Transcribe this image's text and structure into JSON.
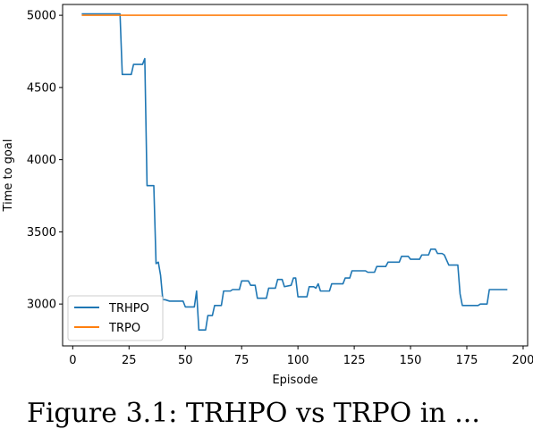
{
  "chart_data": {
    "type": "line",
    "title": "",
    "xlabel": "Episode",
    "ylabel": "Time to goal",
    "xlim": [
      -4.5,
      202
    ],
    "ylim": [
      2710,
      5075
    ],
    "xticks": [
      0,
      25,
      50,
      75,
      100,
      125,
      150,
      175,
      200
    ],
    "yticks": [
      3000,
      3500,
      4000,
      4500,
      5000
    ],
    "grid": false,
    "legend_position": "lower-left",
    "series": [
      {
        "name": "TRHPO",
        "color": "#1f77b4",
        "x": [
          4,
          21,
          22,
          23,
          26,
          27,
          31,
          32,
          33,
          36,
          37,
          38,
          39,
          40,
          41,
          43,
          44,
          49,
          50,
          54,
          55,
          56,
          58,
          59,
          60,
          62,
          63,
          66,
          67,
          70,
          71,
          74,
          75,
          78,
          79,
          81,
          82,
          86,
          87,
          90,
          91,
          93,
          94,
          97,
          98,
          99,
          100,
          101,
          104,
          105,
          107,
          108,
          109,
          110,
          114,
          115,
          120,
          121,
          123,
          124,
          130,
          131,
          134,
          135,
          139,
          140,
          145,
          146,
          149,
          150,
          154,
          155,
          158,
          159,
          161,
          162,
          164,
          165,
          167,
          168,
          171,
          172,
          173,
          174,
          175,
          180,
          181,
          184,
          185,
          193
        ],
        "y": [
          5010,
          5010,
          4590,
          4590,
          4590,
          4660,
          4660,
          4700,
          3820,
          3820,
          3280,
          3290,
          3200,
          3030,
          3030,
          3020,
          3020,
          3020,
          2980,
          2980,
          3090,
          2820,
          2820,
          2820,
          2920,
          2920,
          2990,
          2990,
          3090,
          3090,
          3100,
          3100,
          3160,
          3160,
          3130,
          3130,
          3040,
          3040,
          3110,
          3110,
          3170,
          3170,
          3120,
          3130,
          3180,
          3180,
          3050,
          3050,
          3050,
          3120,
          3120,
          3110,
          3140,
          3090,
          3090,
          3140,
          3140,
          3180,
          3180,
          3230,
          3230,
          3220,
          3220,
          3260,
          3260,
          3290,
          3290,
          3330,
          3330,
          3310,
          3310,
          3340,
          3340,
          3380,
          3380,
          3350,
          3350,
          3340,
          3270,
          3270,
          3270,
          3070,
          2990,
          2990,
          2990,
          2990,
          3000,
          3000,
          3100,
          3100
        ]
      },
      {
        "name": "TRPO",
        "color": "#ff7f0e",
        "x": [
          4,
          193
        ],
        "y": [
          5000,
          5000
        ]
      }
    ]
  },
  "caption_fragment": "Figure 3.1: TRHPO vs TRPO in ..."
}
